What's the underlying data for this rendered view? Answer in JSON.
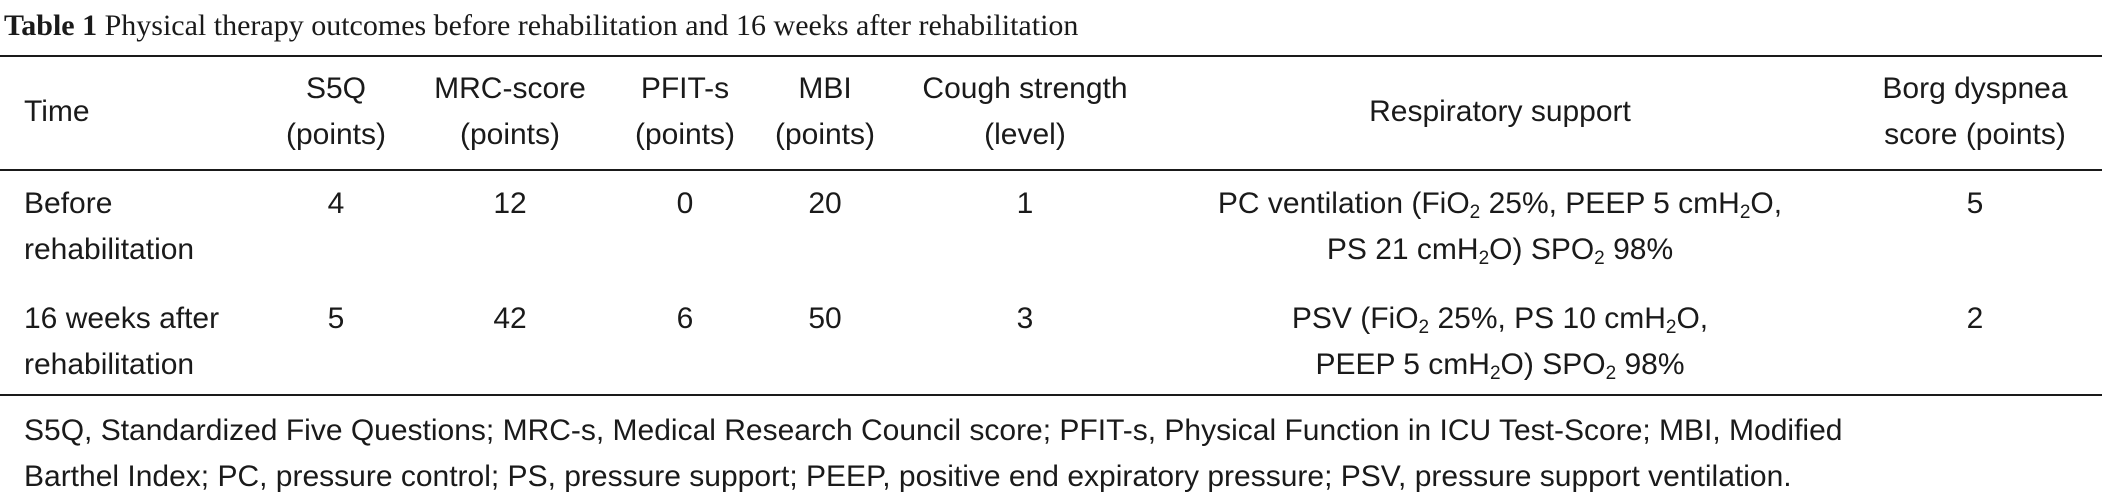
{
  "caption": {
    "label": "Table 1",
    "text": "Physical therapy outcomes before rehabilitation and 16 weeks after rehabilitation"
  },
  "headers": {
    "time": "Time",
    "s5q": [
      "S5Q",
      "(points)"
    ],
    "mrc": [
      "MRC-score",
      "(points)"
    ],
    "pfit": [
      "PFIT-s",
      "(points)"
    ],
    "mbi": [
      "MBI",
      "(points)"
    ],
    "cough": [
      "Cough strength",
      "(level)"
    ],
    "resp": "Respiratory support",
    "borg": [
      "Borg dyspnea",
      "score (points)"
    ]
  },
  "rows": [
    {
      "time": [
        "Before",
        "rehabilitation"
      ],
      "s5q": "4",
      "mrc": "12",
      "pfit": "0",
      "mbi": "20",
      "cough": "1",
      "resp": {
        "line1": {
          "pre": "PC ventilation (FiO",
          "sub1": "2",
          "mid": " 25%, PEEP 5 cmH",
          "sub2": "2",
          "post": "O,"
        },
        "line2": {
          "pre": "PS 21 cmH",
          "sub1": "2",
          "mid": "O) SPO",
          "sub2": "2",
          "post": " 98%"
        }
      },
      "borg": "5"
    },
    {
      "time": [
        "16 weeks after",
        "rehabilitation"
      ],
      "s5q": "5",
      "mrc": "42",
      "pfit": "6",
      "mbi": "50",
      "cough": "3",
      "resp": {
        "line1": {
          "pre": "PSV (FiO",
          "sub1": "2",
          "mid": " 25%, PS 10 cmH",
          "sub2": "2",
          "post": "O,"
        },
        "line2": {
          "pre": "PEEP 5 cmH",
          "sub1": "2",
          "mid": "O) SPO",
          "sub2": "2",
          "post": " 98%"
        }
      },
      "borg": "2"
    }
  ],
  "footnote": [
    "S5Q, Standardized Five Questions; MRC-s, Medical Research Council score; PFIT-s, Physical Function in ICU Test-Score; MBI, Modified",
    "Barthel Index; PC, pressure control; PS, pressure support; PEEP, positive end expiratory pressure; PSV, pressure support ventilation."
  ]
}
